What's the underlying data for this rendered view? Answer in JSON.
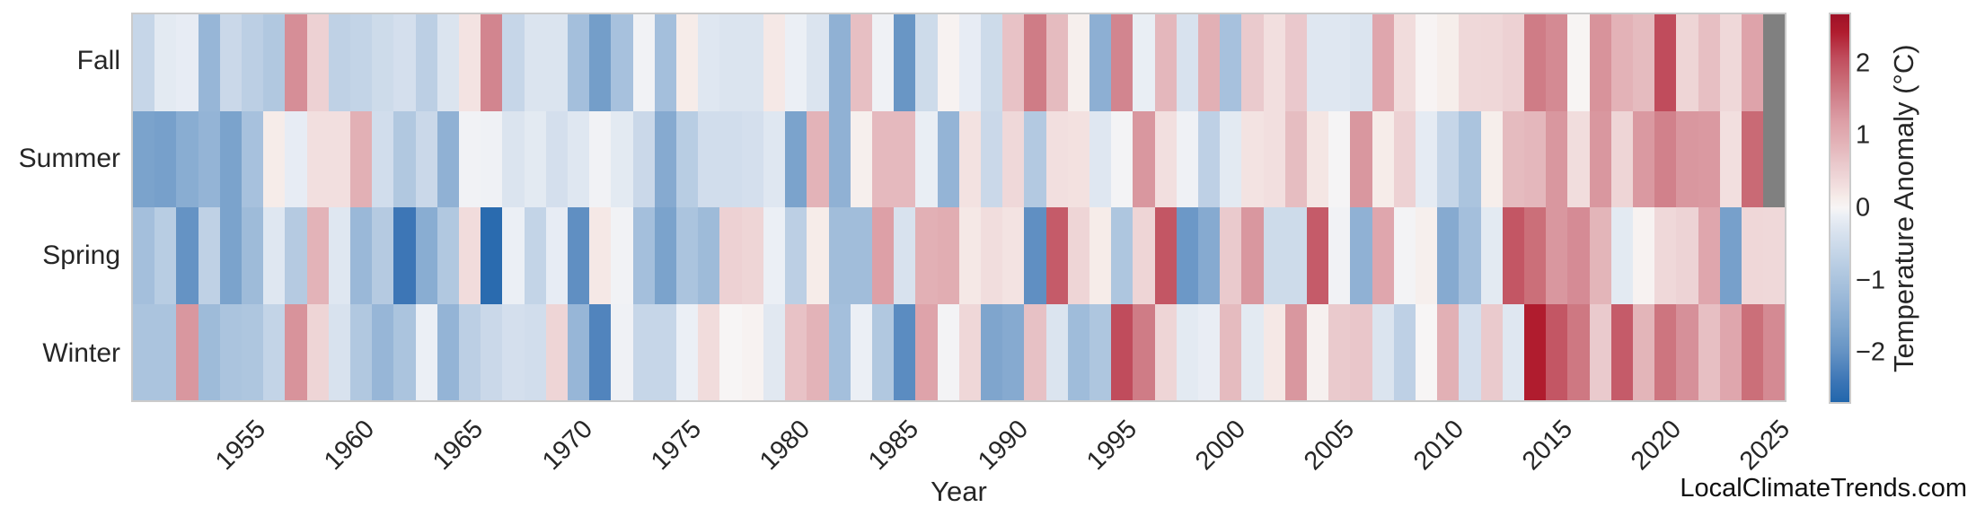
{
  "watermark": "LocalClimateTrends.com",
  "chart_data": {
    "type": "heatmap",
    "title": "",
    "xlabel": "Year",
    "ylabel": "",
    "year_start": 1950,
    "year_end": 2025,
    "x_tick_labels": [
      "1955",
      "1960",
      "1965",
      "1970",
      "1975",
      "1980",
      "1985",
      "1990",
      "1995",
      "2000",
      "2005",
      "2010",
      "2015",
      "2020",
      "2025"
    ],
    "row_labels": [
      "Fall",
      "Summer",
      "Spring",
      "Winter"
    ],
    "legend_position": "right",
    "grid": false,
    "missing_color": "#808080",
    "colorbar": {
      "label": "Temperature Anomaly (°C)",
      "vmin": -2.7,
      "vmax": 2.7,
      "ticks": [
        [
          "2",
          2
        ],
        [
          "1",
          1
        ],
        [
          "0",
          0
        ],
        [
          "−1",
          -1
        ],
        [
          "−2",
          -2
        ]
      ]
    },
    "palette": [
      [
        -2.7,
        "#2166ac"
      ],
      [
        -2.4,
        "#3d76b6"
      ],
      [
        -2.0,
        "#6593c4"
      ],
      [
        -1.7,
        "#7ba3cc"
      ],
      [
        -1.3,
        "#97b6d7"
      ],
      [
        -0.9,
        "#b1c8e0"
      ],
      [
        -0.6,
        "#c6d6e8"
      ],
      [
        -0.3,
        "#dbe4ef"
      ],
      [
        -0.1,
        "#ebeff5"
      ],
      [
        0,
        "#f7f5f5"
      ],
      [
        0.15,
        "#f6ece9"
      ],
      [
        0.3,
        "#f2dfdf"
      ],
      [
        0.6,
        "#eacacd"
      ],
      [
        0.9,
        "#e3b3b8"
      ],
      [
        1.2,
        "#dda0a7"
      ],
      [
        1.5,
        "#d2858f"
      ],
      [
        1.8,
        "#c96a75"
      ],
      [
        2.1,
        "#c04c5c"
      ],
      [
        2.45,
        "#b01c2e"
      ],
      [
        2.7,
        "#9e1127"
      ]
    ],
    "series": [
      {
        "name": "Fall",
        "values": [
          -0.6,
          -0.2,
          -0.15,
          -1.3,
          -0.55,
          -0.75,
          -0.9,
          1.4,
          0.5,
          -0.7,
          -0.65,
          -0.5,
          -0.4,
          -0.75,
          -0.3,
          0.25,
          1.5,
          -0.6,
          -0.3,
          -0.3,
          -1.1,
          -1.8,
          -1.05,
          -0.05,
          -1.1,
          0.15,
          -0.25,
          -0.3,
          -0.3,
          0.2,
          -0.1,
          -0.3,
          -1.4,
          0.75,
          -0.07,
          -1.95,
          -0.5,
          0.05,
          -0.15,
          -0.5,
          0.7,
          1.6,
          0.8,
          0.1,
          -1.45,
          1.5,
          -0.12,
          0.85,
          -0.35,
          0.95,
          -1.05,
          0.6,
          0.3,
          0.62,
          -0.25,
          -0.25,
          -0.3,
          1.1,
          0.35,
          0.03,
          0.12,
          0.4,
          0.42,
          0.5,
          1.6,
          1.45,
          0.02,
          1.35,
          0.92,
          0.8,
          2.1,
          0.45,
          0.75,
          0.4,
          1.15,
          null
        ]
      },
      {
        "name": "Summer",
        "values": [
          -1.7,
          -1.75,
          -1.5,
          -1.35,
          -1.7,
          -1.05,
          0.15,
          -0.15,
          0.3,
          0.3,
          0.95,
          -0.45,
          -0.9,
          -0.55,
          -1.4,
          -0.05,
          -0.07,
          -0.3,
          -0.2,
          -0.4,
          -0.25,
          -0.05,
          -0.2,
          -0.55,
          -1.55,
          -0.8,
          -0.45,
          -0.45,
          -0.4,
          -0.25,
          -1.7,
          0.9,
          -1.4,
          0.1,
          0.82,
          0.82,
          -0.12,
          -1.35,
          0.27,
          -0.55,
          0.4,
          -0.87,
          0.3,
          0.28,
          -0.25,
          -0.03,
          1.3,
          0.3,
          -0.07,
          -0.72,
          -0.2,
          0.25,
          0.3,
          0.77,
          0.22,
          -0.02,
          1.3,
          0.15,
          0.5,
          -0.17,
          -0.6,
          -1.0,
          0.12,
          0.8,
          0.85,
          1.3,
          0.33,
          1.3,
          0.45,
          1.28,
          1.55,
          1.3,
          1.28,
          0.3,
          1.8,
          null
        ]
      },
      {
        "name": "Spring",
        "values": [
          -1.1,
          -0.8,
          -2.0,
          -0.7,
          -1.7,
          -1.2,
          -0.25,
          -0.85,
          0.9,
          -0.25,
          -1.25,
          -0.85,
          -2.4,
          -1.5,
          -0.9,
          0.35,
          -2.6,
          -0.1,
          -0.65,
          -0.15,
          -2.05,
          0.2,
          -0.05,
          -1.1,
          -1.7,
          -1.0,
          -1.2,
          0.5,
          0.45,
          -0.1,
          -0.75,
          0.15,
          -1.15,
          -1.15,
          1.2,
          -0.35,
          0.95,
          1.0,
          0.2,
          0.33,
          0.25,
          -2.05,
          1.95,
          0.45,
          0.15,
          -0.95,
          0.45,
          2.0,
          -1.9,
          -1.55,
          0.6,
          1.3,
          -0.5,
          -0.5,
          1.95,
          -0.05,
          -1.4,
          1.1,
          -0.03,
          0.1,
          -1.55,
          -1.1,
          -0.2,
          2.0,
          1.75,
          1.3,
          1.43,
          0.88,
          -0.2,
          0.05,
          0.4,
          0.47,
          1.1,
          -1.75,
          0.42,
          0.4
        ]
      },
      {
        "name": "Winter",
        "values": [
          -1.0,
          -1.0,
          1.3,
          -1.2,
          -1.0,
          -0.95,
          -0.65,
          1.35,
          0.45,
          -0.35,
          -0.9,
          -1.3,
          -1.0,
          -0.1,
          -1.35,
          -0.75,
          -0.55,
          -0.4,
          -0.45,
          0.45,
          -1.3,
          -2.2,
          -0.07,
          -0.6,
          -0.6,
          -0.1,
          0.35,
          0.0,
          0.05,
          -0.22,
          0.7,
          0.9,
          -1.1,
          -0.1,
          -0.9,
          -2.1,
          1.15,
          -0.03,
          0.42,
          -1.65,
          -1.55,
          0.72,
          -0.3,
          -1.17,
          -0.95,
          2.1,
          1.6,
          0.45,
          -0.2,
          -0.13,
          0.8,
          -0.2,
          0.2,
          1.3,
          0.08,
          0.6,
          0.65,
          -0.3,
          -0.72,
          0.0,
          0.95,
          -0.4,
          0.6,
          -0.25,
          2.45,
          2.0,
          1.65,
          0.6,
          1.95,
          0.88,
          1.68,
          1.38,
          0.75,
          1.1,
          1.75,
          1.45
        ]
      }
    ]
  }
}
